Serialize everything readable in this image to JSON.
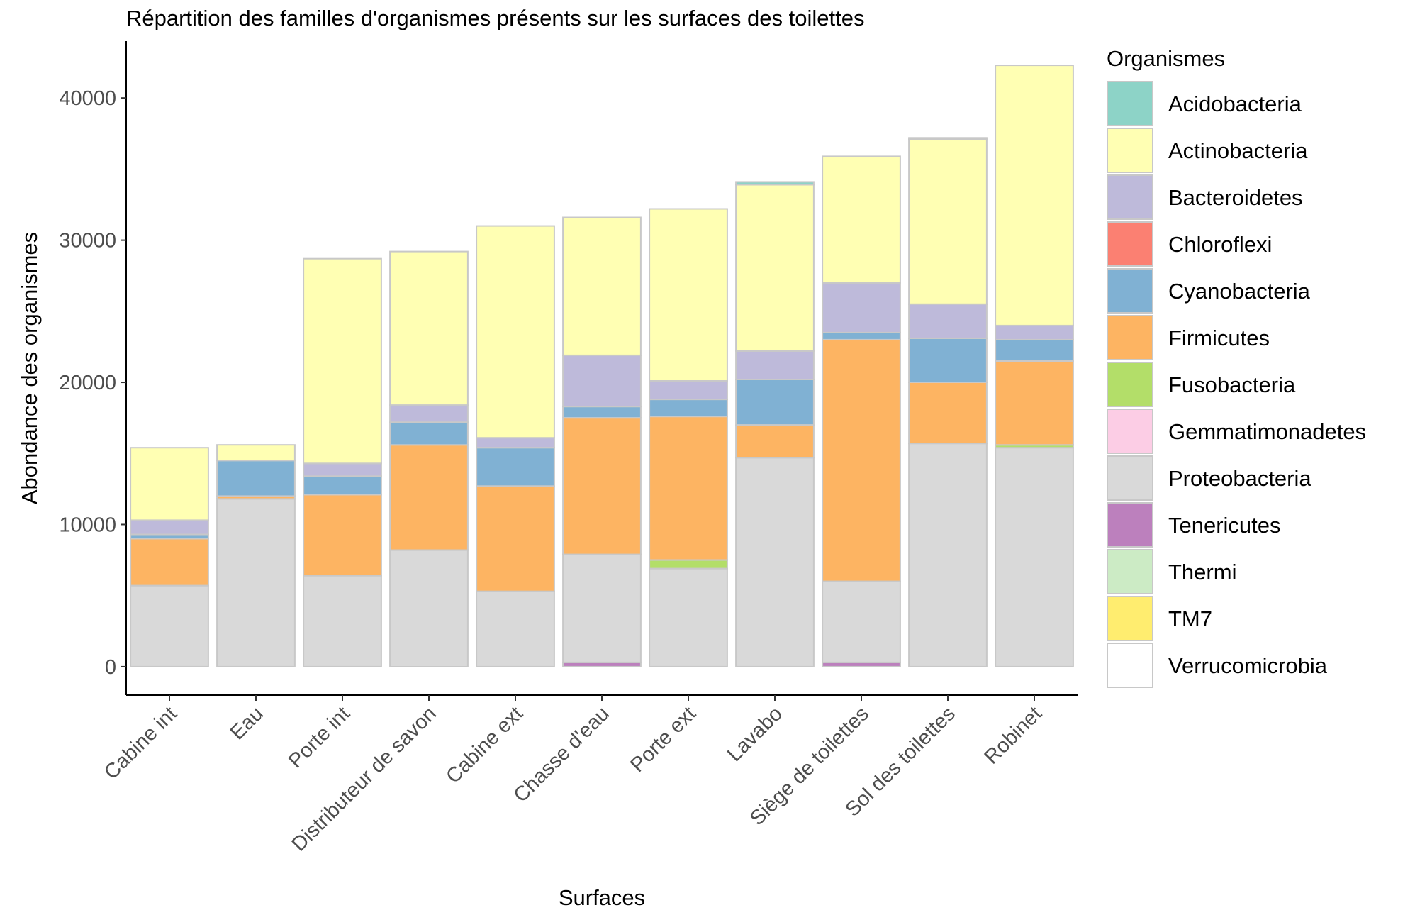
{
  "chart_data": {
    "type": "bar",
    "stacked": true,
    "title": "Répartition des familles d'organismes présents sur les surfaces des toilettes",
    "xlabel": "Surfaces",
    "ylabel": "Abondance des organismes",
    "ylim": [
      -2000,
      44000
    ],
    "yticks": [
      "0",
      "10000",
      "20000",
      "30000",
      "40000"
    ],
    "ytick_values": [
      0,
      10000,
      20000,
      30000,
      40000
    ],
    "grid": false,
    "legend_title": "Organismes",
    "legend_position": "right",
    "categories": [
      "Cabine int",
      "Eau",
      "Porte int",
      "Distributeur de savon",
      "Cabine ext",
      "Chasse d'eau",
      "Porte ext",
      "Lavabo",
      "Siège de toilettes",
      "Sol des toilettes",
      "Robinet"
    ],
    "series": [
      {
        "name": "Verrucomicrobia",
        "color": "#FFFFFF",
        "values": [
          0,
          0,
          0,
          0,
          0,
          0,
          0,
          0,
          0,
          0,
          0
        ]
      },
      {
        "name": "TM7",
        "color": "#FFED6F",
        "values": [
          0,
          0,
          0,
          0,
          0,
          0,
          0,
          0,
          0,
          0,
          0
        ]
      },
      {
        "name": "Thermi",
        "color": "#CCEBC5",
        "values": [
          0,
          0,
          0,
          0,
          0,
          0,
          0,
          0,
          0,
          0,
          0
        ]
      },
      {
        "name": "Tenericutes",
        "color": "#BC80BD",
        "values": [
          0,
          0,
          0,
          0,
          0,
          300,
          0,
          0,
          300,
          0,
          0
        ]
      },
      {
        "name": "Proteobacteria",
        "color": "#D9D9D9",
        "values": [
          5700,
          11800,
          6400,
          8200,
          5300,
          7600,
          6900,
          14700,
          5700,
          15700,
          15400
        ]
      },
      {
        "name": "Gemmatimonadetes",
        "color": "#FCCDE5",
        "values": [
          0,
          0,
          0,
          0,
          0,
          0,
          0,
          0,
          0,
          0,
          0
        ]
      },
      {
        "name": "Fusobacteria",
        "color": "#B3DE69",
        "values": [
          0,
          0,
          0,
          0,
          0,
          0,
          600,
          0,
          0,
          0,
          200
        ]
      },
      {
        "name": "Firmicutes",
        "color": "#FDB462",
        "values": [
          3300,
          200,
          5700,
          7400,
          7400,
          9600,
          10100,
          2300,
          17000,
          4300,
          5900
        ]
      },
      {
        "name": "Cyanobacteria",
        "color": "#80B1D3",
        "values": [
          300,
          2500,
          1300,
          1600,
          2700,
          800,
          1200,
          3200,
          500,
          3100,
          1500
        ]
      },
      {
        "name": "Chloroflexi",
        "color": "#FB8072",
        "values": [
          0,
          0,
          0,
          0,
          0,
          0,
          0,
          0,
          0,
          0,
          0
        ]
      },
      {
        "name": "Bacteroidetes",
        "color": "#BEBADA",
        "values": [
          1000,
          0,
          900,
          1200,
          700,
          3600,
          1300,
          2000,
          3500,
          2400,
          1000
        ]
      },
      {
        "name": "Actinobacteria",
        "color": "#FFFFB3",
        "values": [
          5100,
          1100,
          14400,
          10800,
          14900,
          9700,
          12100,
          11700,
          8900,
          11600,
          18300
        ]
      },
      {
        "name": "Acidobacteria",
        "color": "#8DD3C7",
        "values": [
          0,
          0,
          0,
          0,
          0,
          0,
          0,
          200,
          0,
          100,
          0
        ]
      }
    ],
    "legend_order": [
      "Acidobacteria",
      "Actinobacteria",
      "Bacteroidetes",
      "Chloroflexi",
      "Cyanobacteria",
      "Firmicutes",
      "Fusobacteria",
      "Gemmatimonadetes",
      "Proteobacteria",
      "Tenericutes",
      "Thermi",
      "TM7",
      "Verrucomicrobia"
    ]
  }
}
